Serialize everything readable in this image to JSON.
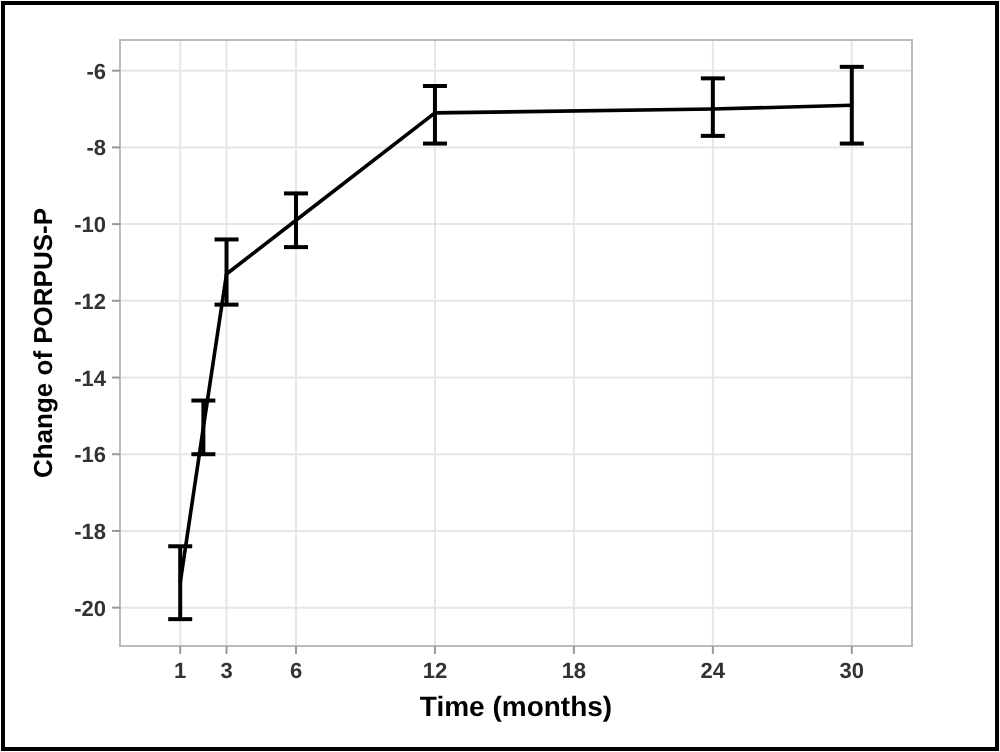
{
  "chart_data": {
    "type": "line",
    "xlabel": "Time (months)",
    "ylabel": "Change of PORPUS-P",
    "x": [
      1,
      2,
      3,
      6,
      12,
      24,
      30
    ],
    "series": [
      {
        "color": "#000000",
        "values": [
          -19.35,
          -15.3,
          -11.3,
          -9.9,
          -7.1,
          -7.0,
          -6.9
        ],
        "errors": [
          [
            -20.3,
            -18.4
          ],
          [
            -16.0,
            -14.6
          ],
          [
            -12.1,
            -10.4
          ],
          [
            -10.6,
            -9.2
          ],
          [
            -7.9,
            -6.4
          ],
          [
            -7.7,
            -6.2
          ],
          [
            -7.9,
            -5.9
          ]
        ]
      }
    ],
    "xlim": [
      -1.6,
      32.6
    ],
    "xticks": [
      1,
      3,
      6,
      12,
      18,
      24,
      30
    ],
    "ylim": [
      -21,
      -5.2
    ],
    "yticks": [
      -20,
      -18,
      -16,
      -14,
      -12,
      -10,
      -8,
      -6
    ],
    "grid": true,
    "marker": "none",
    "line_style": "solid"
  }
}
